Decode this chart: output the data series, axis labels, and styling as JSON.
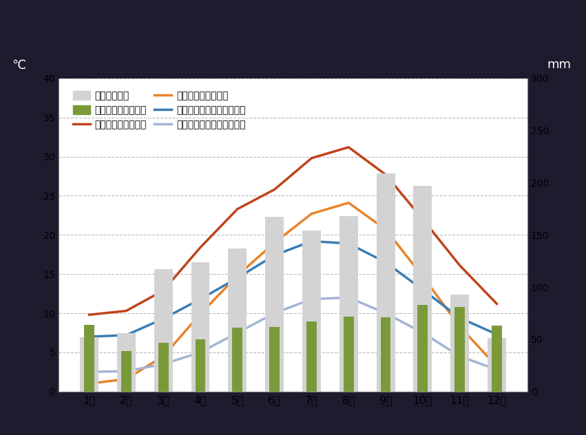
{
  "months": [
    "1月",
    "2月",
    "3月",
    "4月",
    "5月",
    "6月",
    "7月",
    "8月",
    "9月",
    "10月",
    "11月",
    "12月"
  ],
  "tokyo_precip": [
    52,
    56,
    117,
    124,
    137,
    167,
    154,
    168,
    209,
    197,
    93,
    51
  ],
  "edinburgh_precip": [
    64,
    39,
    47,
    50,
    61,
    62,
    67,
    72,
    71,
    83,
    81,
    63
  ],
  "tokyo_max_temp": [
    9.8,
    10.3,
    12.9,
    18.4,
    23.3,
    25.8,
    29.8,
    31.2,
    27.7,
    22.0,
    16.1,
    11.2
  ],
  "tokyo_min_temp": [
    1.0,
    1.6,
    4.5,
    9.9,
    14.8,
    19.0,
    22.7,
    24.1,
    20.7,
    14.7,
    8.3,
    3.2
  ],
  "edinburgh_max_temp": [
    7.0,
    7.2,
    9.3,
    11.8,
    14.5,
    17.4,
    19.2,
    18.9,
    16.5,
    13.0,
    9.4,
    7.3
  ],
  "edinburgh_min_temp": [
    2.5,
    2.6,
    3.5,
    5.0,
    7.5,
    10.0,
    11.8,
    12.0,
    10.0,
    7.5,
    4.5,
    2.8
  ],
  "tokyo_precip_color": "#d3d3d3",
  "edinburgh_precip_color": "#7a9a3a",
  "tokyo_max_color": "#c0441b",
  "tokyo_min_color": "#e8832a",
  "edinburgh_max_color": "#3a7db5",
  "edinburgh_min_color": "#a0b4d5",
  "outer_bg_color": "#1c1c2e",
  "plot_bg_color": "#ffffff",
  "temp_ylim": [
    0,
    40
  ],
  "precip_ylim": [
    0,
    300
  ],
  "temp_yticks": [
    0,
    5,
    10,
    15,
    20,
    25,
    30,
    35,
    40
  ],
  "precip_yticks": [
    0,
    50,
    100,
    150,
    200,
    250,
    300
  ],
  "ylabel_left": "℃",
  "ylabel_right": "mm",
  "legend_labels": [
    "東京の降水量",
    "エジンバラの降水量",
    "東京の平均最高気温",
    "東京の平均最低気温",
    "エジンバラの平均最高気温",
    "エジンバラの平均最低気温"
  ]
}
